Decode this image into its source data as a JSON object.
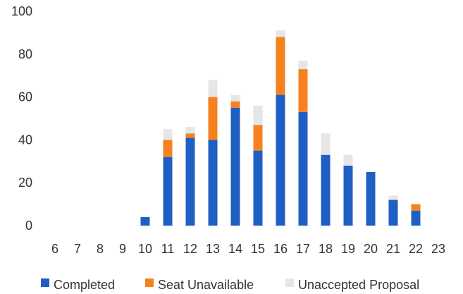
{
  "chart_data": {
    "type": "bar",
    "stacked": true,
    "categories": [
      "6",
      "7",
      "8",
      "9",
      "10",
      "11",
      "12",
      "13",
      "14",
      "15",
      "16",
      "17",
      "18",
      "19",
      "20",
      "21",
      "22",
      "23"
    ],
    "series": [
      {
        "name": "Completed",
        "color": "#1f5fc4",
        "values": [
          0,
          0,
          0,
          0,
          4,
          32,
          41,
          40,
          55,
          35,
          61,
          53,
          33,
          28,
          25,
          12,
          7,
          0
        ]
      },
      {
        "name": "Seat Unavailable",
        "color": "#f5821f",
        "values": [
          0,
          0,
          0,
          0,
          0,
          8,
          2,
          20,
          3,
          12,
          27,
          20,
          0,
          0,
          0,
          0,
          3,
          0
        ]
      },
      {
        "name": "Unaccepted Proposal",
        "color": "#e6e6e6",
        "values": [
          0,
          0,
          0,
          0,
          0,
          5,
          3,
          8,
          3,
          9,
          3,
          4,
          10,
          5,
          0,
          2,
          0,
          0
        ]
      }
    ],
    "ylim": [
      0,
      100
    ],
    "yticks": [
      "0",
      "20",
      "40",
      "60",
      "80",
      "100"
    ],
    "grid": false,
    "legend_position": "bottom",
    "title": "",
    "xlabel": "",
    "ylabel": ""
  }
}
